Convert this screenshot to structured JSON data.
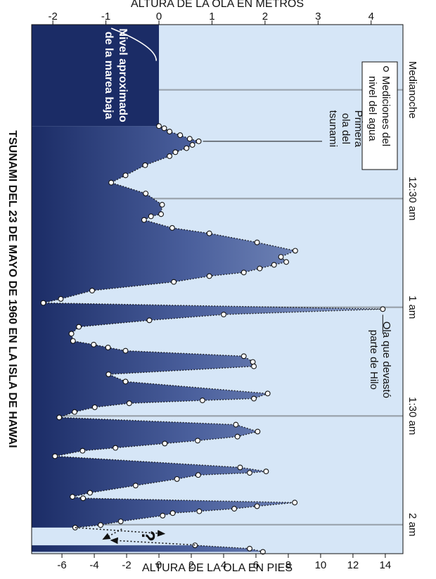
{
  "chart_data": {
    "type": "area",
    "title": "TSUNAMI DEL 23 DE MAYO DE 1960 EN LA ISLA DE HAWAI",
    "x_axis": {
      "label": "",
      "ticks": [
        "Medianoche",
        "12:30 am",
        "1 am",
        "1:30 am",
        "2 am"
      ],
      "tick_minutes": [
        0,
        30,
        60,
        90,
        120
      ],
      "range_minutes": [
        -18,
        128
      ]
    },
    "y_axis_left": {
      "label": "ALTURA DE LA OLA EN METROS",
      "ticks": [
        "-2",
        "-1",
        "0",
        "1",
        "2",
        "3",
        "4"
      ],
      "range": [
        -2.4,
        4.6
      ]
    },
    "y_axis_right": {
      "label": "ALTURA DE LA OLA EN PIES",
      "ticks": [
        "-6",
        "-4",
        "-2",
        "0",
        "2",
        "4",
        "6",
        "8",
        "10",
        "12",
        "14"
      ]
    },
    "legend": {
      "label": "Mediciones del nivel del agua",
      "position": "top-left"
    },
    "grid": "vertical lines at time ticks",
    "series": [
      {
        "name": "Mediciones del nivel del agua",
        "x": [
          10,
          10.6,
          11.5,
          12.5,
          13.5,
          14.2,
          15.2,
          16.1,
          17.2,
          18.3,
          20.8,
          23.6,
          25.6,
          28.6,
          31.7,
          34.3,
          34.9,
          35.9,
          38.1,
          39.6,
          42.1,
          44.4,
          46.1,
          47.5,
          48.3,
          49.3,
          50.4,
          51.4,
          53,
          55.4,
          57.7,
          58.8,
          60.5,
          62,
          63.6,
          65.4,
          67.3,
          69.3,
          70.3,
          71.1,
          72,
          73.5,
          75.1,
          76.3,
          78.5,
          80.5,
          83.8,
          85.2,
          85.7,
          86.5,
          87.6,
          88.9,
          90.4,
          92.4,
          94.3,
          95.7,
          96.8,
          97.6,
          98.8,
          99.6,
          101.1,
          104.2,
          105.3,
          105.7,
          106.3,
          107.4,
          109.2,
          111.2,
          112.3,
          112.7,
          113.9,
          114.9,
          115.6,
          116.3,
          116.8,
          117.5,
          119.1,
          120.1,
          120.8,
          125.7,
          126.6,
          127.5
        ],
        "y": [
          0,
          0.1,
          0.2,
          0.4,
          0.58,
          0.75,
          0.63,
          0.52,
          0.31,
          0.2,
          -0.26,
          -0.63,
          -0.9,
          -0.25,
          0.06,
          0.04,
          -0.15,
          -0.28,
          0.25,
          0.95,
          1.85,
          2.57,
          2.3,
          2.4,
          2.17,
          1.9,
          1.6,
          0.95,
          0.28,
          -1.26,
          -1.85,
          -2.18,
          4.22,
          1.22,
          -0.18,
          -1.51,
          -1.65,
          -1.62,
          -1.23,
          -0.96,
          -0.63,
          1.6,
          1.77,
          1.79,
          -0.95,
          -0.63,
          2.05,
          1.79,
          0.82,
          -0.56,
          -1.21,
          -1.59,
          -1.88,
          1.45,
          1.86,
          1.48,
          0.73,
          0.11,
          -0.82,
          -1.44,
          -1.96,
          1.53,
          2.02,
          1.71,
          0.74,
          0.34,
          -0.44,
          -1.3,
          -1.63,
          -1.43,
          2.56,
          1.85,
          1.42,
          0.76,
          0.26,
          0.07,
          -0.72,
          -1.1,
          -1.58,
          0.68,
          1.71,
          1.96
        ]
      }
    ]
  },
  "annotations": {
    "first_wave": [
      "Primera",
      "ola del",
      "tsunami"
    ],
    "destructive_wave": [
      "Ola que devastó",
      "parte de Hilo"
    ],
    "low_tide": [
      "Nivel aproximado",
      "de la marea baja"
    ],
    "unknown_marker": "?"
  }
}
